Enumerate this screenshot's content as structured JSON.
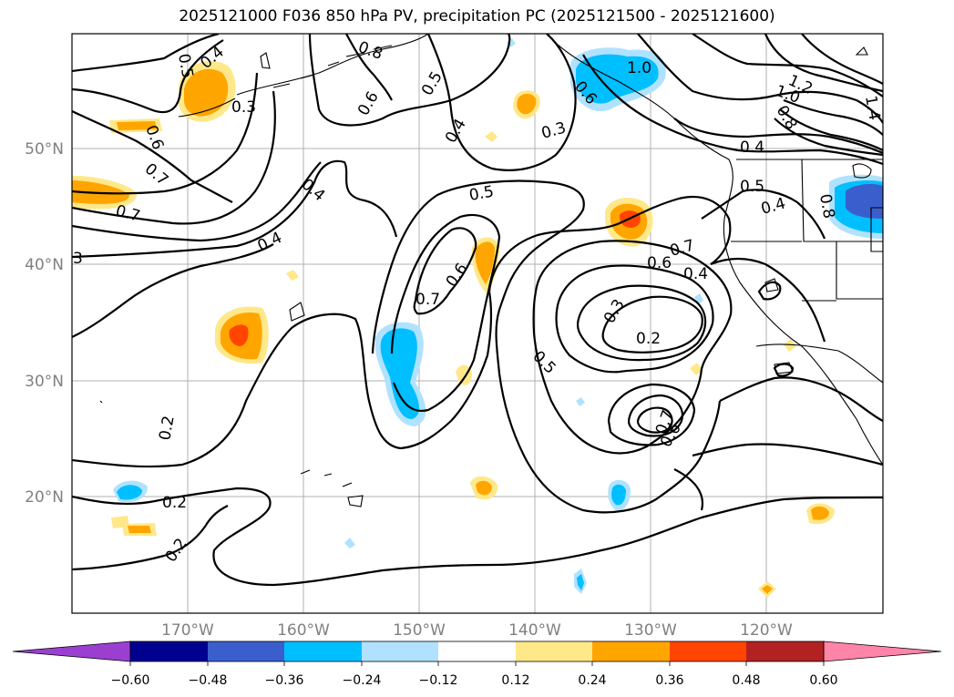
{
  "title": "2025121000 F036 850 hPa PV, precipitation PC (2025121500 - 2025121600)",
  "longitude_ticks": [
    "170°W",
    "160°W",
    "150°W",
    "140°W",
    "130°W",
    "120°W"
  ],
  "latitude_ticks": [
    "50°N",
    "40°N",
    "30°N",
    "20°N"
  ],
  "contour_labels": [
    "0.4",
    "0.5",
    "0.3",
    "0.6",
    "0.7",
    "0.8",
    "0.7",
    "0.4",
    "0.5",
    "0.6",
    "0.3",
    "0.4",
    "1.0",
    "0.6",
    "1.2",
    "1.0",
    "0.8",
    "1.4",
    "0.5",
    "0.4",
    "0.5",
    "0.4",
    "0.8",
    "0.7",
    "0.6",
    "0.4",
    "0.3",
    "0.2",
    "0.5",
    "0.7",
    "0.6",
    "0.6",
    "0.7",
    "0.2",
    "0.2",
    "0.2",
    "0.4",
    "3"
  ],
  "colorbar": {
    "ticks": [
      "−0.60",
      "−0.48",
      "−0.36",
      "−0.24",
      "−0.12",
      "0.12",
      "0.24",
      "0.36",
      "0.48",
      "0.60"
    ],
    "colors": [
      "#9b3fd1",
      "#000090",
      "#3a5fcd",
      "#00bfff",
      "#b0e2ff",
      "#ffffff",
      "#ffe88a",
      "#ffa500",
      "#ff4500",
      "#b22222",
      "#ff85a8",
      "#ff85a8"
    ]
  },
  "precip_colors": {
    "light_pos": "#ffe88a",
    "mid_pos": "#ffa500",
    "high_pos": "#ff4500",
    "light_neg": "#b0e2ff",
    "mid_neg": "#00bfff",
    "high_neg": "#3a5fcd"
  }
}
